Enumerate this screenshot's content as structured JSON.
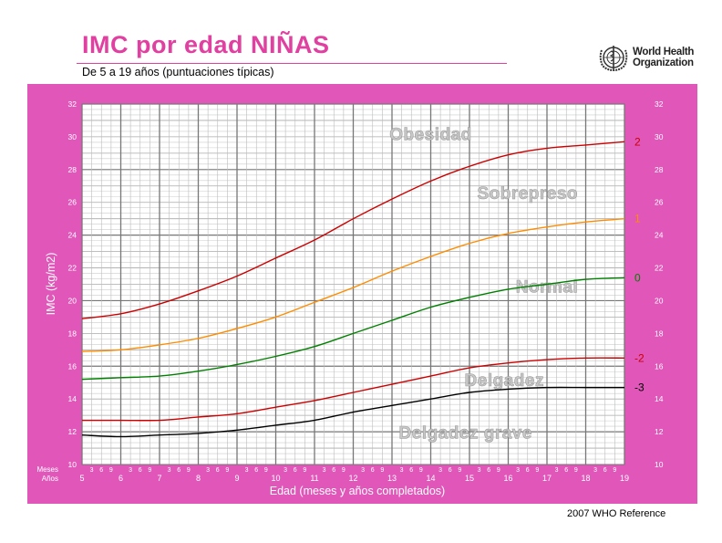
{
  "header": {
    "title": "IMC por edad NIÑAS",
    "subtitle": "De 5 a 19 años (puntuaciones típicas)",
    "org_line1": "World Health",
    "org_line2": "Organization",
    "footer": "2007 WHO Reference"
  },
  "colors": {
    "panel": "#e056b9",
    "title": "#e0409f",
    "sd2": "#cc0000",
    "sd1": "#ff8c00",
    "sd0": "#008000",
    "sdm2": "#cc0000",
    "sdm3": "#000000"
  },
  "chart_data": {
    "type": "line",
    "title": "IMC por edad NIÑAS",
    "xlabel": "Edad (meses y años completados)",
    "ylabel": "IMC (kg/m2)",
    "xlim": [
      5,
      19
    ],
    "ylim": [
      10,
      32
    ],
    "x_ticks": [
      5,
      6,
      7,
      8,
      9,
      10,
      11,
      12,
      13,
      14,
      15,
      16,
      17,
      18,
      19
    ],
    "month_ticks": [
      "3",
      "6",
      "9"
    ],
    "month_row_label": "Meses",
    "year_row_label": "Años",
    "y_ticks": [
      10,
      12,
      14,
      16,
      18,
      20,
      22,
      24,
      26,
      28,
      30,
      32
    ],
    "x": [
      5,
      6,
      7,
      8,
      9,
      10,
      11,
      12,
      13,
      14,
      15,
      16,
      17,
      18,
      19
    ],
    "series": [
      {
        "name": "2",
        "color": "#cc0000",
        "values": [
          18.9,
          19.2,
          19.8,
          20.6,
          21.5,
          22.6,
          23.7,
          25.0,
          26.2,
          27.3,
          28.2,
          28.9,
          29.3,
          29.5,
          29.7
        ]
      },
      {
        "name": "1",
        "color": "#ff8c00",
        "values": [
          16.9,
          17.0,
          17.3,
          17.7,
          18.3,
          19.0,
          19.9,
          20.8,
          21.8,
          22.7,
          23.5,
          24.1,
          24.5,
          24.8,
          25.0
        ]
      },
      {
        "name": "0",
        "color": "#008000",
        "values": [
          15.2,
          15.3,
          15.4,
          15.7,
          16.1,
          16.6,
          17.2,
          18.0,
          18.8,
          19.6,
          20.2,
          20.7,
          21.0,
          21.3,
          21.4
        ]
      },
      {
        "name": "-2",
        "color": "#cc0000",
        "values": [
          12.7,
          12.7,
          12.7,
          12.9,
          13.1,
          13.5,
          13.9,
          14.4,
          14.9,
          15.4,
          15.9,
          16.2,
          16.4,
          16.5,
          16.5
        ]
      },
      {
        "name": "-3",
        "color": "#000000",
        "values": [
          11.8,
          11.7,
          11.8,
          11.9,
          12.1,
          12.4,
          12.7,
          13.2,
          13.6,
          14.0,
          14.4,
          14.6,
          14.7,
          14.7,
          14.7
        ]
      }
    ],
    "annotations": [
      {
        "text": "Obesidad",
        "x": 14.0,
        "y": 29.8
      },
      {
        "text": "Sobrepreso",
        "x": 16.5,
        "y": 26.2
      },
      {
        "text": "Normal",
        "x": 17.0,
        "y": 20.5
      },
      {
        "text": "Delgadez",
        "x": 15.9,
        "y": 14.8
      },
      {
        "text": "Delgadez grave",
        "x": 14.9,
        "y": 11.6
      }
    ],
    "grid": true,
    "legend": "line-end labels right"
  }
}
